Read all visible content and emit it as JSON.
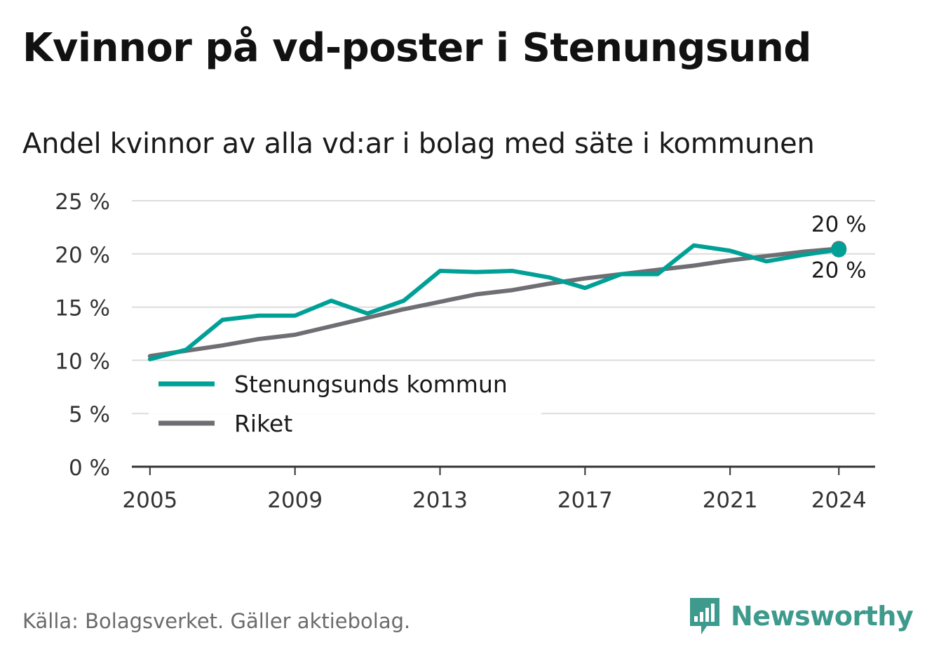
{
  "title": "Kvinnor på vd-poster i Stenungsund",
  "subtitle": "Andel kvinnor av alla vd:ar i bolag med säte i kommunen",
  "source": "Källa: Bolagsverket. Gäller aktiebolag.",
  "brand": {
    "name": "Newsworthy",
    "icon": "newsworthy-logo-icon",
    "color": "#3d9a8c"
  },
  "chart_data": {
    "type": "line",
    "x": [
      2005,
      2006,
      2007,
      2008,
      2009,
      2010,
      2011,
      2012,
      2013,
      2014,
      2015,
      2016,
      2017,
      2018,
      2019,
      2020,
      2021,
      2022,
      2023,
      2024
    ],
    "x_ticks": [
      "2005",
      "2009",
      "2013",
      "2017",
      "2021",
      "2024"
    ],
    "y_ticks": [
      "0 %",
      "5 %",
      "10 %",
      "15 %",
      "20 %",
      "25 %"
    ],
    "ylim": [
      0,
      25
    ],
    "grid": true,
    "legend": "lower-left",
    "series": [
      {
        "name": "Stenungsunds kommun",
        "color": "#00a096",
        "values": [
          10.1,
          11.0,
          13.8,
          14.2,
          14.2,
          15.6,
          14.4,
          15.6,
          18.4,
          18.3,
          18.4,
          17.8,
          16.8,
          18.1,
          18.1,
          20.8,
          20.3,
          19.3,
          19.9,
          20.4
        ],
        "end_label": "20 %"
      },
      {
        "name": "Riket",
        "color": "#6e6e73",
        "values": [
          10.4,
          10.9,
          11.4,
          12.0,
          12.4,
          13.2,
          14.0,
          14.8,
          15.5,
          16.2,
          16.6,
          17.2,
          17.7,
          18.1,
          18.5,
          18.9,
          19.4,
          19.8,
          20.2,
          20.5
        ],
        "end_label": "20 %"
      }
    ]
  }
}
